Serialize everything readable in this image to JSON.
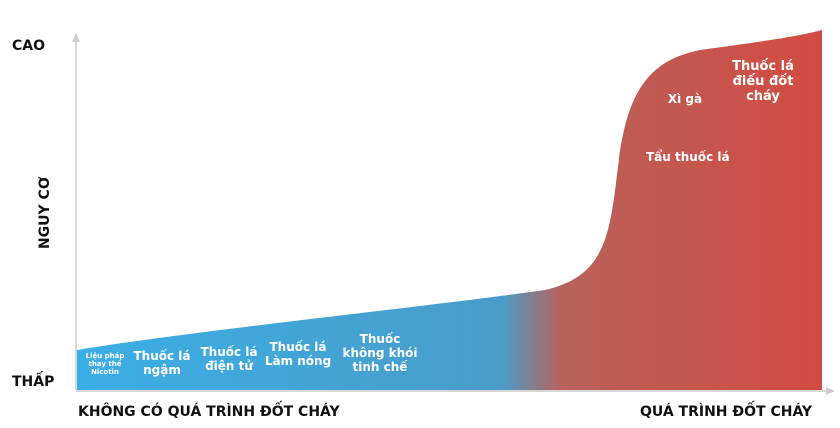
{
  "y_axis": {
    "label": "NGUY CƠ",
    "high": "CAO",
    "low": "THẤP"
  },
  "x_axis": {
    "left": "KHÔNG CÓ QUÁ TRÌNH ĐỐT CHÁY",
    "right": "QUÁ TRÌNH ĐỐT CHÁY"
  },
  "products": [
    {
      "label": "Liệu pháp thay thế Nicotin"
    },
    {
      "label": "Thuốc lá ngậm"
    },
    {
      "label": "Thuốc lá điện tử"
    },
    {
      "label": "Thuốc lá Làm nóng"
    },
    {
      "label": "Thuốc không khói tinh chế"
    },
    {
      "label": "Tẩu thuốc lá"
    },
    {
      "label": "Xì gà"
    },
    {
      "label": "Thuốc lá điếu đốt cháy"
    }
  ],
  "colors": {
    "low": "#3aaee6",
    "high": "#d24b42"
  }
}
